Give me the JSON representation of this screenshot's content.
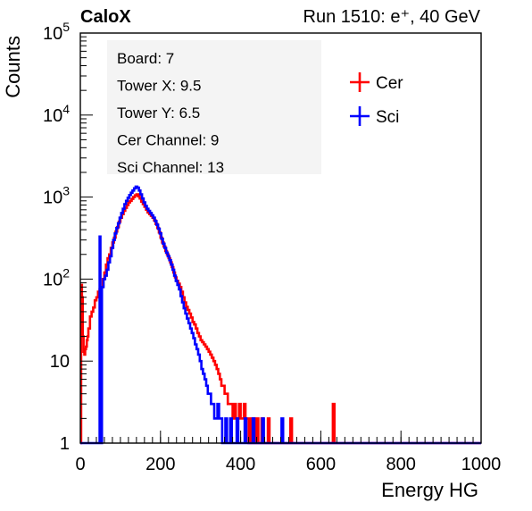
{
  "chart_data": {
    "type": "line",
    "title_left": "CaloX",
    "title_right": "Run 1510: e⁺, 40 GeV",
    "xlabel": "Energy HG",
    "ylabel": "Counts",
    "xlim": [
      0,
      1000
    ],
    "ylim": [
      1,
      100000
    ],
    "yscale": "log",
    "x_ticks": [
      "0",
      "200",
      "400",
      "600",
      "800",
      "1000"
    ],
    "y_ticks": [
      {
        "base": "1",
        "exp": ""
      },
      {
        "base": "10",
        "exp": ""
      },
      {
        "base": "10",
        "exp": "2"
      },
      {
        "base": "10",
        "exp": "3"
      },
      {
        "base": "10",
        "exp": "4"
      },
      {
        "base": "10",
        "exp": "5"
      }
    ],
    "info_lines": [
      "Board: 7",
      "Tower X: 9.5",
      "Tower Y: 6.5",
      "Cer Channel: 9",
      "Sci Channel: 13"
    ],
    "legend_position": "top-right",
    "grid": false,
    "series": [
      {
        "name": "Cer",
        "color": "#ff0000",
        "points": [
          [
            0,
            1
          ],
          [
            2,
            85
          ],
          [
            4,
            60
          ],
          [
            6,
            20
          ],
          [
            8,
            13
          ],
          [
            10,
            12
          ],
          [
            12,
            14
          ],
          [
            14,
            15
          ],
          [
            16,
            18
          ],
          [
            18,
            20
          ],
          [
            20,
            25
          ],
          [
            24,
            35
          ],
          [
            28,
            40
          ],
          [
            32,
            45
          ],
          [
            36,
            55
          ],
          [
            40,
            60
          ],
          [
            44,
            70
          ],
          [
            48,
            75
          ],
          [
            52,
            80
          ],
          [
            56,
            100
          ],
          [
            60,
            120
          ],
          [
            64,
            150
          ],
          [
            68,
            180
          ],
          [
            72,
            200
          ],
          [
            76,
            240
          ],
          [
            80,
            280
          ],
          [
            84,
            320
          ],
          [
            88,
            380
          ],
          [
            92,
            430
          ],
          [
            96,
            500
          ],
          [
            100,
            560
          ],
          [
            104,
            620
          ],
          [
            108,
            680
          ],
          [
            112,
            740
          ],
          [
            116,
            800
          ],
          [
            120,
            860
          ],
          [
            124,
            900
          ],
          [
            128,
            950
          ],
          [
            132,
            1000
          ],
          [
            136,
            1050
          ],
          [
            140,
            1080
          ],
          [
            144,
            1020
          ],
          [
            148,
            960
          ],
          [
            152,
            880
          ],
          [
            156,
            820
          ],
          [
            160,
            760
          ],
          [
            164,
            700
          ],
          [
            168,
            650
          ],
          [
            172,
            620
          ],
          [
            176,
            590
          ],
          [
            180,
            560
          ],
          [
            184,
            520
          ],
          [
            188,
            470
          ],
          [
            192,
            420
          ],
          [
            196,
            370
          ],
          [
            200,
            320
          ],
          [
            204,
            280
          ],
          [
            208,
            250
          ],
          [
            212,
            220
          ],
          [
            216,
            200
          ],
          [
            220,
            180
          ],
          [
            224,
            160
          ],
          [
            228,
            140
          ],
          [
            232,
            120
          ],
          [
            236,
            105
          ],
          [
            240,
            95
          ],
          [
            244,
            88
          ],
          [
            248,
            80
          ],
          [
            252,
            70
          ],
          [
            256,
            60
          ],
          [
            260,
            52
          ],
          [
            264,
            46
          ],
          [
            268,
            42
          ],
          [
            272,
            38
          ],
          [
            276,
            34
          ],
          [
            280,
            30
          ],
          [
            284,
            28
          ],
          [
            288,
            25
          ],
          [
            292,
            22
          ],
          [
            296,
            20
          ],
          [
            300,
            18
          ],
          [
            304,
            17
          ],
          [
            308,
            16
          ],
          [
            312,
            15
          ],
          [
            316,
            14
          ],
          [
            320,
            13
          ],
          [
            324,
            12
          ],
          [
            328,
            11
          ],
          [
            332,
            10
          ],
          [
            336,
            9
          ],
          [
            340,
            8
          ],
          [
            344,
            7
          ],
          [
            348,
            6
          ],
          [
            352,
            5
          ],
          [
            356,
            5
          ],
          [
            360,
            4
          ],
          [
            364,
            4
          ],
          [
            368,
            3
          ],
          [
            372,
            3
          ],
          [
            376,
            3
          ],
          [
            380,
            2
          ],
          [
            384,
            3
          ],
          [
            388,
            2
          ],
          [
            392,
            2
          ],
          [
            396,
            3
          ],
          [
            400,
            2
          ],
          [
            404,
            2
          ],
          [
            408,
            3
          ],
          [
            412,
            2
          ],
          [
            416,
            2
          ],
          [
            420,
            1
          ],
          [
            424,
            2
          ],
          [
            428,
            1
          ],
          [
            432,
            2
          ],
          [
            436,
            1
          ],
          [
            440,
            2
          ],
          [
            444,
            1
          ],
          [
            448,
            1
          ],
          [
            452,
            2
          ],
          [
            456,
            1
          ],
          [
            460,
            1
          ],
          [
            464,
            1
          ],
          [
            468,
            2
          ],
          [
            472,
            1
          ],
          [
            476,
            1
          ],
          [
            480,
            1
          ],
          [
            484,
            1
          ],
          [
            488,
            1
          ],
          [
            492,
            1
          ],
          [
            496,
            1
          ],
          [
            500,
            1
          ],
          [
            504,
            1
          ],
          [
            508,
            1
          ],
          [
            512,
            1
          ],
          [
            516,
            1
          ],
          [
            520,
            1
          ],
          [
            524,
            2
          ],
          [
            528,
            1
          ],
          [
            532,
            1
          ],
          [
            536,
            1
          ],
          [
            540,
            1
          ],
          [
            544,
            1
          ],
          [
            548,
            1
          ],
          [
            552,
            1
          ],
          [
            556,
            1
          ],
          [
            560,
            1
          ],
          [
            600,
            1
          ],
          [
            628,
            1
          ],
          [
            630,
            3
          ],
          [
            634,
            1
          ],
          [
            700,
            1
          ],
          [
            800,
            1
          ],
          [
            900,
            1
          ],
          [
            1000,
            1
          ]
        ]
      },
      {
        "name": "Sci",
        "color": "#0000ff",
        "points": [
          [
            0,
            1
          ],
          [
            46,
            1
          ],
          [
            48,
            330
          ],
          [
            50,
            1
          ],
          [
            54,
            80
          ],
          [
            58,
            100
          ],
          [
            62,
            110
          ],
          [
            66,
            130
          ],
          [
            70,
            160
          ],
          [
            74,
            190
          ],
          [
            78,
            240
          ],
          [
            82,
            300
          ],
          [
            86,
            360
          ],
          [
            90,
            420
          ],
          [
            94,
            480
          ],
          [
            98,
            560
          ],
          [
            102,
            640
          ],
          [
            106,
            720
          ],
          [
            110,
            820
          ],
          [
            114,
            900
          ],
          [
            118,
            980
          ],
          [
            122,
            1060
          ],
          [
            126,
            1130
          ],
          [
            130,
            1200
          ],
          [
            134,
            1280
          ],
          [
            138,
            1340
          ],
          [
            142,
            1300
          ],
          [
            146,
            1200
          ],
          [
            150,
            1080
          ],
          [
            154,
            960
          ],
          [
            158,
            860
          ],
          [
            162,
            780
          ],
          [
            166,
            720
          ],
          [
            170,
            680
          ],
          [
            174,
            640
          ],
          [
            178,
            600
          ],
          [
            182,
            560
          ],
          [
            186,
            510
          ],
          [
            190,
            460
          ],
          [
            194,
            410
          ],
          [
            198,
            360
          ],
          [
            202,
            310
          ],
          [
            206,
            270
          ],
          [
            210,
            240
          ],
          [
            214,
            210
          ],
          [
            218,
            190
          ],
          [
            222,
            170
          ],
          [
            226,
            150
          ],
          [
            230,
            130
          ],
          [
            234,
            110
          ],
          [
            238,
            95
          ],
          [
            242,
            85
          ],
          [
            246,
            75
          ],
          [
            250,
            62
          ],
          [
            254,
            52
          ],
          [
            258,
            44
          ],
          [
            262,
            38
          ],
          [
            266,
            33
          ],
          [
            270,
            29
          ],
          [
            274,
            25
          ],
          [
            278,
            22
          ],
          [
            282,
            19
          ],
          [
            286,
            16
          ],
          [
            290,
            14
          ],
          [
            294,
            12
          ],
          [
            298,
            10
          ],
          [
            302,
            8
          ],
          [
            306,
            7
          ],
          [
            310,
            6
          ],
          [
            314,
            5
          ],
          [
            318,
            4
          ],
          [
            322,
            4
          ],
          [
            326,
            3
          ],
          [
            330,
            3
          ],
          [
            334,
            2
          ],
          [
            338,
            2
          ],
          [
            342,
            3
          ],
          [
            346,
            2
          ],
          [
            350,
            2
          ],
          [
            354,
            1
          ],
          [
            358,
            1
          ],
          [
            362,
            2
          ],
          [
            366,
            1
          ],
          [
            370,
            1
          ],
          [
            374,
            2
          ],
          [
            378,
            1
          ],
          [
            382,
            1
          ],
          [
            386,
            1
          ],
          [
            390,
            2
          ],
          [
            394,
            1
          ],
          [
            398,
            1
          ],
          [
            402,
            1
          ],
          [
            406,
            1
          ],
          [
            410,
            2
          ],
          [
            414,
            1
          ],
          [
            418,
            1
          ],
          [
            422,
            1
          ],
          [
            426,
            1
          ],
          [
            430,
            2
          ],
          [
            434,
            1
          ],
          [
            438,
            1
          ],
          [
            442,
            1
          ],
          [
            446,
            1
          ],
          [
            450,
            1
          ],
          [
            454,
            2
          ],
          [
            458,
            1
          ],
          [
            462,
            1
          ],
          [
            466,
            1
          ],
          [
            470,
            1
          ],
          [
            474,
            1
          ],
          [
            478,
            1
          ],
          [
            482,
            1
          ],
          [
            486,
            1
          ],
          [
            490,
            1
          ],
          [
            494,
            1
          ],
          [
            498,
            1
          ],
          [
            502,
            2
          ],
          [
            506,
            1
          ],
          [
            510,
            1
          ],
          [
            514,
            1
          ],
          [
            518,
            1
          ],
          [
            522,
            1
          ],
          [
            526,
            1
          ],
          [
            530,
            1
          ],
          [
            534,
            1
          ],
          [
            538,
            1
          ],
          [
            542,
            1
          ],
          [
            600,
            1
          ],
          [
            700,
            1
          ],
          [
            800,
            1
          ],
          [
            900,
            1
          ],
          [
            1000,
            1
          ]
        ]
      }
    ]
  }
}
